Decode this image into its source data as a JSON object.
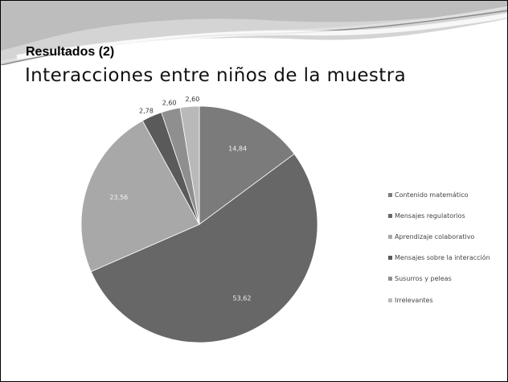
{
  "slide": {
    "subtitle": "Resultados (2)",
    "title": "Interacciones entre niños de la muestra"
  },
  "chart_data": {
    "type": "pie",
    "title": "",
    "slices": [
      {
        "label": "Contenido matemático",
        "value": 14.84,
        "value_label": "14,84",
        "color": "#7b7b7b"
      },
      {
        "label": "Mensajes regulatorios",
        "value": 53.62,
        "value_label": "53,62",
        "color": "#676767"
      },
      {
        "label": "Aprendizaje colaborativo",
        "value": 23.56,
        "value_label": "23,56",
        "color": "#a8a8a8"
      },
      {
        "label": "Mensajes sobre la interacción",
        "value": 2.78,
        "value_label": "2,78",
        "color": "#5a5a5a"
      },
      {
        "label": "Susurros y peleas",
        "value": 2.6,
        "value_label": "2,60",
        "color": "#8f8f8f"
      },
      {
        "label": "Irrelevantes",
        "value": 2.6,
        "value_label": "2,60",
        "color": "#b9b9b9"
      }
    ],
    "start_angle_deg": 0,
    "direction": "clockwise",
    "legend_position": "right"
  }
}
